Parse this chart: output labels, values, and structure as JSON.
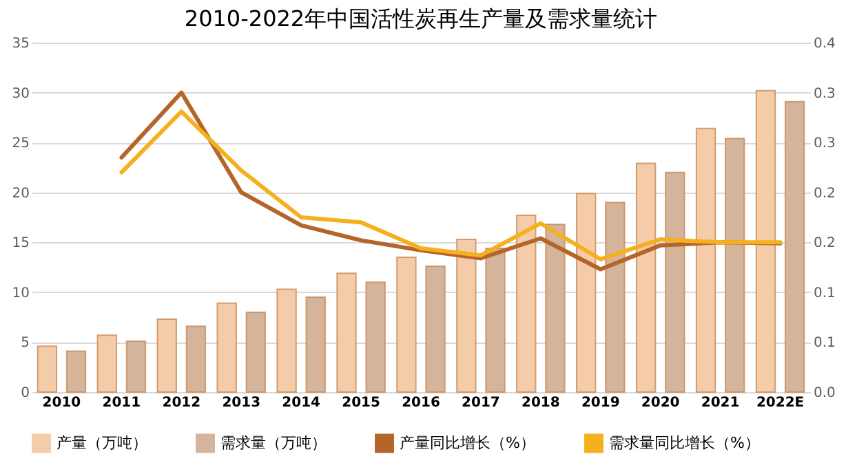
{
  "chart_data": {
    "type": "bar",
    "title": "2010-2022年中国活性炭再生产量及需求量统计",
    "categories": [
      "2010",
      "2011",
      "2012",
      "2013",
      "2014",
      "2015",
      "2016",
      "2017",
      "2018",
      "2019",
      "2020",
      "2021",
      "2022E"
    ],
    "series": [
      {
        "name": "产量（万吨）",
        "color": "#f4ccaa",
        "values": [
          4.6,
          5.7,
          7.3,
          8.9,
          10.3,
          11.9,
          13.5,
          15.3,
          17.7,
          19.9,
          22.9,
          26.4,
          30.2
        ]
      },
      {
        "name": "需求量（万吨）",
        "color": "#d4b49a",
        "values": [
          4.1,
          5.1,
          6.6,
          8.0,
          9.5,
          11.0,
          12.6,
          14.4,
          16.8,
          19.0,
          22.0,
          25.4,
          29.1
        ]
      },
      {
        "name": "产量同比增长（%）",
        "type": "line",
        "axis": "y2",
        "color": "#b5652a",
        "values": [
          null,
          0.235,
          0.3,
          0.2,
          0.167,
          0.152,
          0.142,
          0.134,
          0.154,
          0.123,
          0.147,
          0.15,
          0.149
        ]
      },
      {
        "name": "需求量同比增长（%）",
        "type": "line",
        "axis": "y2",
        "color": "#f5b01e",
        "values": [
          null,
          0.22,
          0.281,
          0.222,
          0.175,
          0.17,
          0.144,
          0.137,
          0.169,
          0.133,
          0.153,
          0.15,
          0.15
        ]
      }
    ],
    "ylim": [
      0,
      35
    ],
    "yticks": [
      0,
      5,
      10,
      15,
      20,
      25,
      30,
      35
    ],
    "y2lim": [
      0,
      0.35
    ],
    "y2ticks": [
      {
        "value": 0,
        "label": "0.0"
      },
      {
        "value": 0.05,
        "label": "0.1"
      },
      {
        "value": 0.1,
        "label": "0.1"
      },
      {
        "value": 0.15,
        "label": "0.2"
      },
      {
        "value": 0.2,
        "label": "0.2"
      },
      {
        "value": 0.25,
        "label": "0.3"
      },
      {
        "value": 0.3,
        "label": "0.3"
      },
      {
        "value": 0.35,
        "label": "0.4"
      }
    ],
    "grid": "y",
    "legend": "bottom"
  }
}
